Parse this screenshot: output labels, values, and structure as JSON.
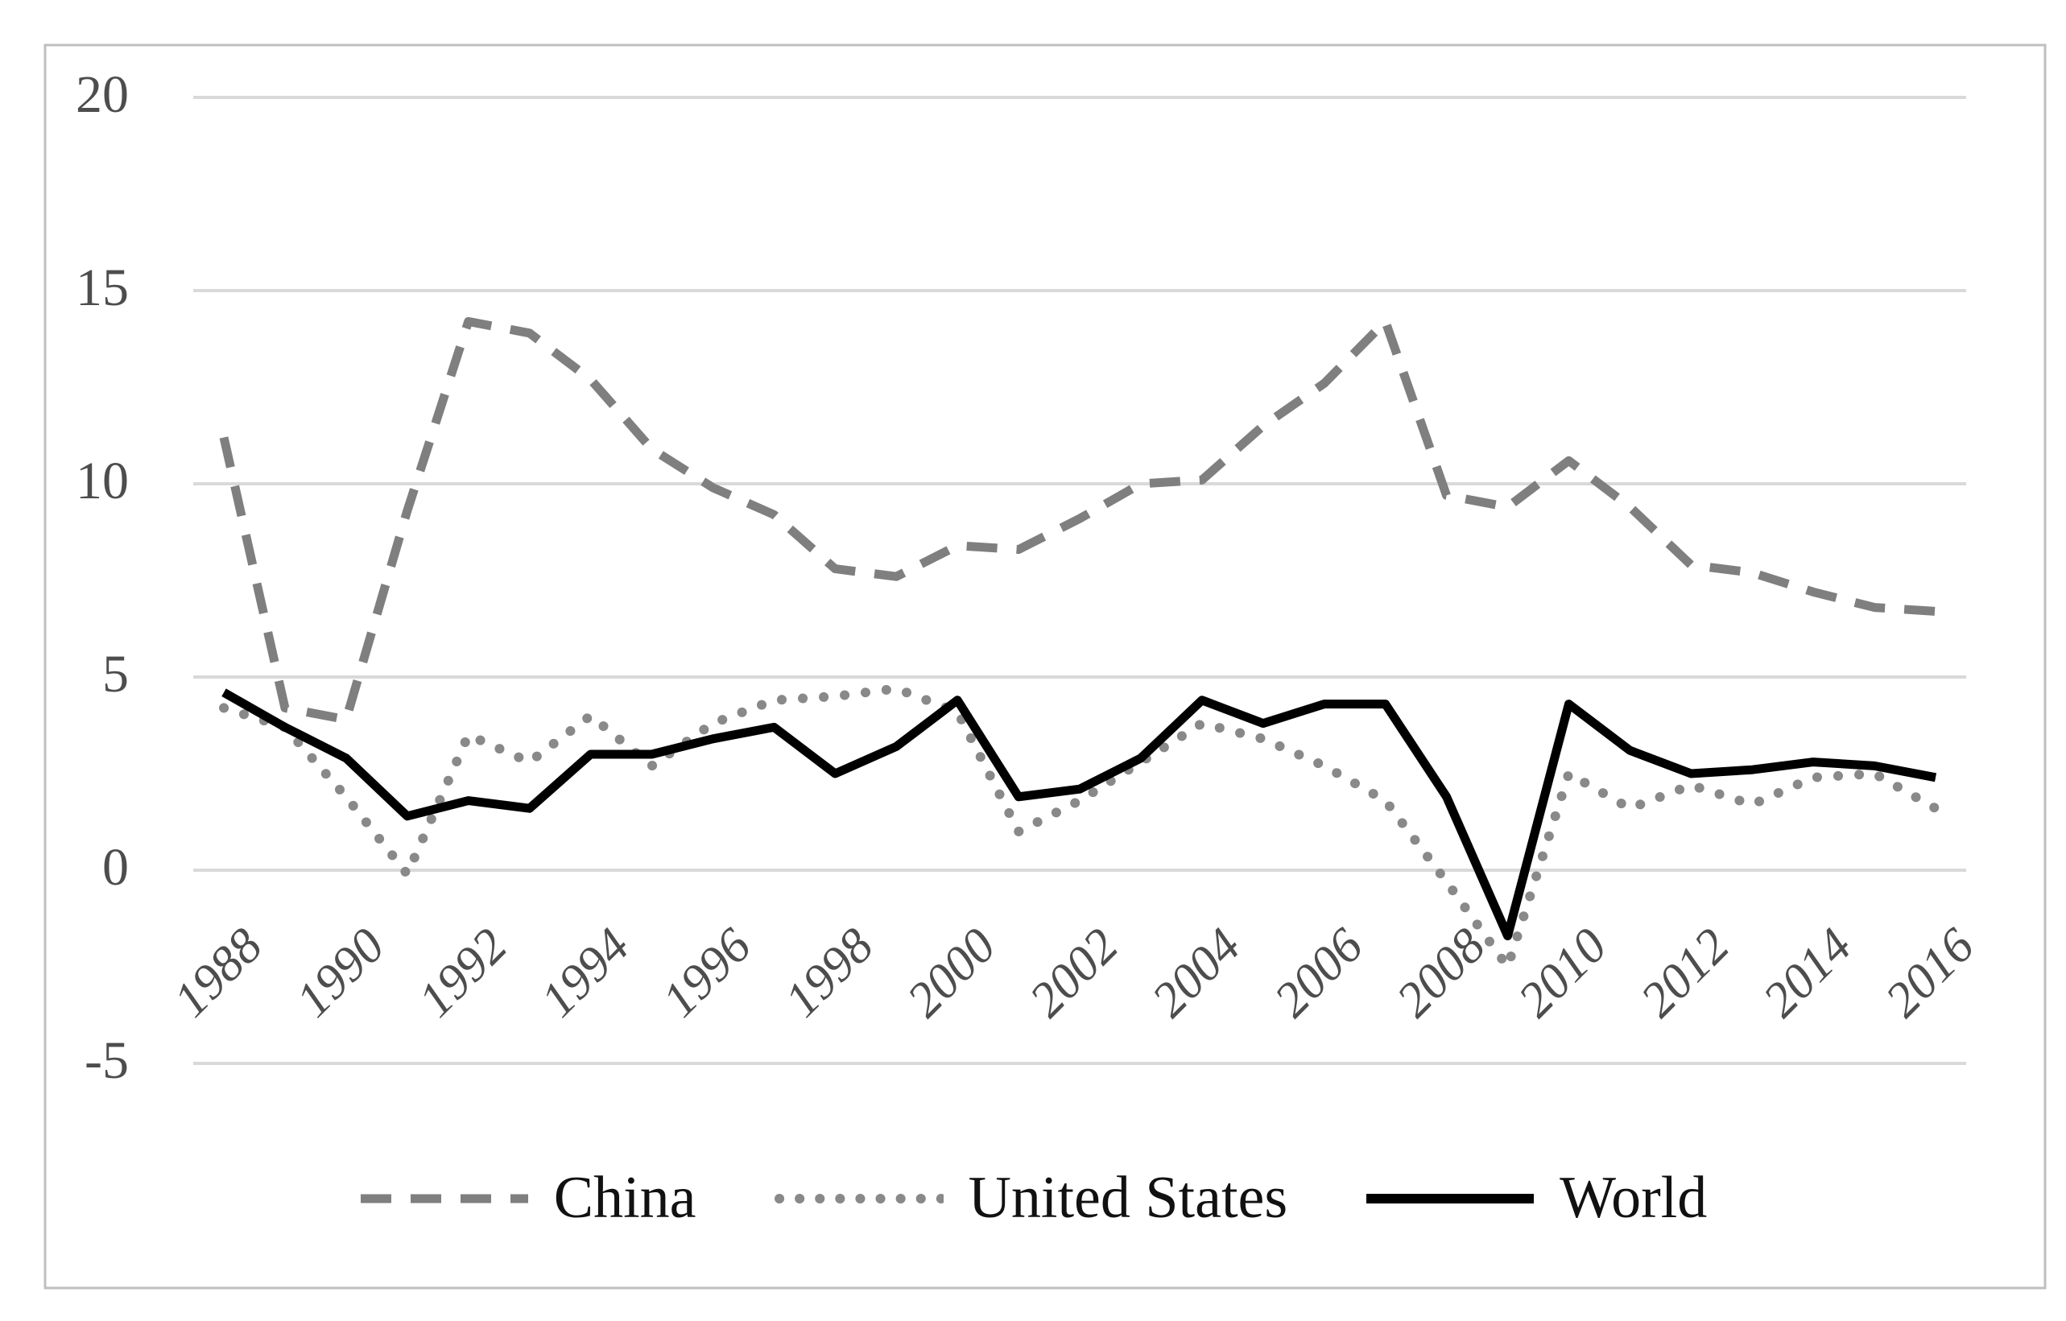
{
  "figure": {
    "border_color": "#bfbfbf",
    "background_color": "#ffffff",
    "tick_text_color": "#4d4d4d"
  },
  "chart_data": {
    "type": "line",
    "title": "",
    "xlabel": "",
    "ylabel": "",
    "grid": "horizontal",
    "gridline_color": "#d9d9d9",
    "legend_position": "bottom",
    "ylim": [
      -5,
      20
    ],
    "ytick_values": [
      20,
      15,
      10,
      5,
      0,
      -5
    ],
    "ytick_labels": [
      "20",
      "15",
      "10",
      "5",
      "0",
      "-5"
    ],
    "xtick_years": [
      1988,
      1990,
      1992,
      1994,
      1996,
      1998,
      2000,
      2002,
      2004,
      2006,
      2008,
      2010,
      2012,
      2014,
      2016
    ],
    "xtick_labels": [
      "1988",
      "1990",
      "1992",
      "1994",
      "1996",
      "1998",
      "2000",
      "2002",
      "2004",
      "2006",
      "2008",
      "2010",
      "2012",
      "2014",
      "2016"
    ],
    "x": [
      1988,
      1989,
      1990,
      1991,
      1992,
      1993,
      1994,
      1995,
      1996,
      1997,
      1998,
      1999,
      2000,
      2001,
      2002,
      2003,
      2004,
      2005,
      2006,
      2007,
      2008,
      2009,
      2010,
      2011,
      2012,
      2013,
      2014,
      2015,
      2016
    ],
    "series": [
      {
        "name": "China",
        "style": "dashed",
        "color": "#7f7f7f",
        "values": [
          11.2,
          4.2,
          3.9,
          9.3,
          14.2,
          13.9,
          12.7,
          10.9,
          9.9,
          9.2,
          7.8,
          7.6,
          8.4,
          8.3,
          9.1,
          10.0,
          10.1,
          11.5,
          12.6,
          14.2,
          9.7,
          9.4,
          10.6,
          9.4,
          7.9,
          7.7,
          7.2,
          6.8,
          6.7
        ]
      },
      {
        "name": "United States",
        "style": "dotted",
        "color": "#898989",
        "values": [
          4.2,
          3.7,
          1.9,
          -0.1,
          3.5,
          2.8,
          4.0,
          2.7,
          3.8,
          4.4,
          4.5,
          4.7,
          4.1,
          1.0,
          1.8,
          2.8,
          3.8,
          3.4,
          2.7,
          1.8,
          -0.3,
          -2.5,
          2.5,
          1.6,
          2.2,
          1.7,
          2.4,
          2.5,
          1.6
        ]
      },
      {
        "name": "World",
        "style": "solid",
        "color": "#000000",
        "values": [
          4.6,
          3.7,
          2.9,
          1.4,
          1.8,
          1.6,
          3.0,
          3.0,
          3.4,
          3.7,
          2.5,
          3.2,
          4.4,
          1.9,
          2.1,
          2.9,
          4.4,
          3.8,
          4.3,
          4.3,
          1.9,
          -1.7,
          4.3,
          3.1,
          2.5,
          2.6,
          2.8,
          2.7,
          2.4
        ]
      }
    ]
  }
}
